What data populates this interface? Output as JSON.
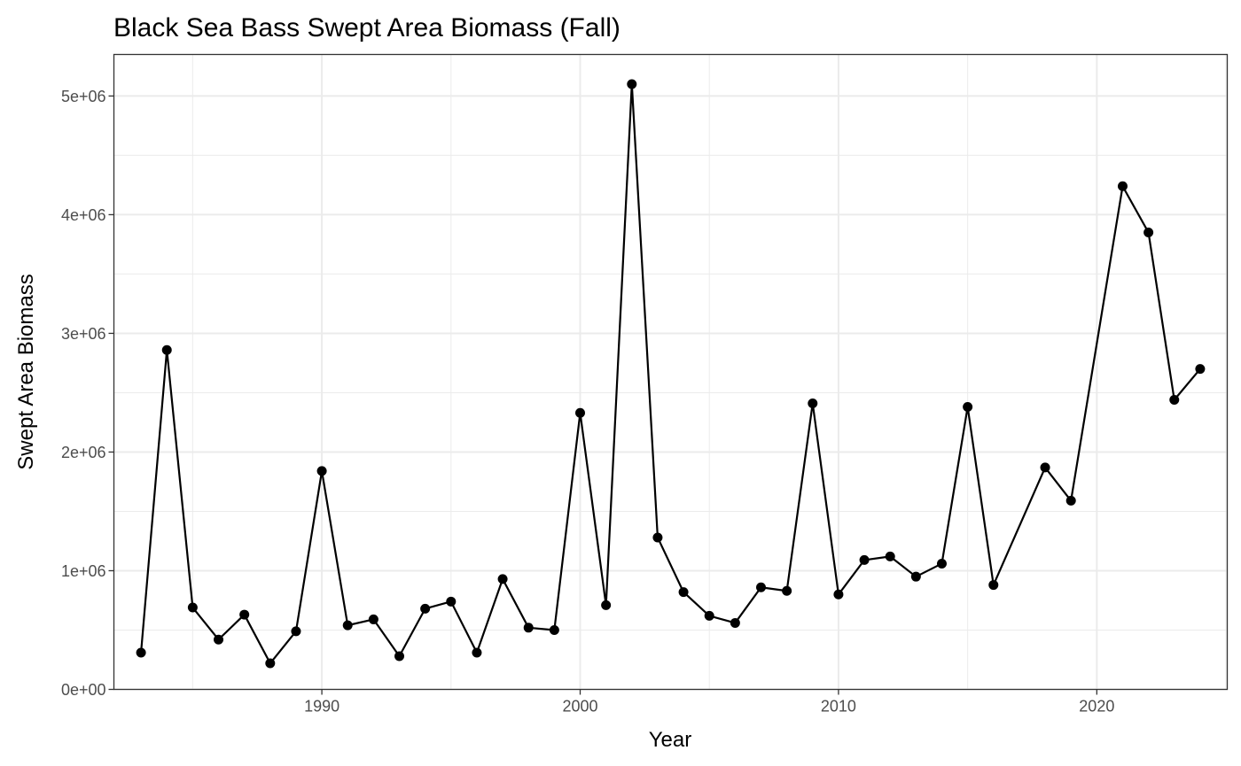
{
  "chart_data": {
    "type": "line",
    "title": "Black Sea Bass Swept Area Biomass (Fall)",
    "xlabel": "Year",
    "ylabel": "Swept Area Biomass",
    "xlim": [
      1981.95,
      2025.05
    ],
    "ylim": [
      0,
      5350000
    ],
    "x_ticks": [
      1990,
      2000,
      2010,
      2020
    ],
    "x_tick_labels": [
      "1990",
      "2000",
      "2010",
      "2020"
    ],
    "y_ticks": [
      0,
      1000000,
      2000000,
      3000000,
      4000000,
      5000000
    ],
    "y_tick_labels": [
      "0e+00",
      "1e+06",
      "2e+06",
      "3e+06",
      "4e+06",
      "5e+06"
    ],
    "grid": true,
    "legend": "none",
    "colors": {
      "line": "#000000",
      "point": "#000000",
      "grid": "#ebebeb",
      "panel_border": "#333333"
    },
    "series": [
      {
        "x": [
          1983,
          1984,
          1985,
          1986,
          1987,
          1988,
          1989,
          1990,
          1991,
          1992,
          1993,
          1994,
          1995,
          1996,
          1997,
          1998,
          1999,
          2000,
          2001,
          2002,
          2003,
          2004,
          2005,
          2006,
          2007,
          2008,
          2009,
          2010,
          2011,
          2012,
          2013,
          2014,
          2015,
          2016,
          2018,
          2019,
          2021,
          2022,
          2023,
          2024
        ],
        "values": [
          310000,
          2860000,
          690000,
          420000,
          630000,
          220000,
          490000,
          1840000,
          540000,
          590000,
          280000,
          680000,
          740000,
          310000,
          930000,
          520000,
          500000,
          2330000,
          710000,
          5100000,
          1280000,
          820000,
          620000,
          560000,
          860000,
          830000,
          2410000,
          800000,
          1090000,
          1120000,
          950000,
          1060000,
          2380000,
          880000,
          1870000,
          1590000,
          4240000,
          3850000,
          2440000,
          2700000
        ]
      }
    ]
  }
}
